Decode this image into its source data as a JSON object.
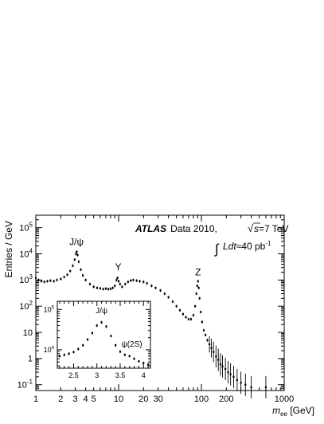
{
  "chart_data": {
    "type": "scatter",
    "main": {
      "xlabel": {
        "prefix": "m",
        "sub": "ee",
        "unit": " [GeV]"
      },
      "ylabel": "Entries / GeV",
      "xscale": "log",
      "yscale": "log",
      "xlim": [
        1,
        1000
      ],
      "ylim": [
        0.06,
        300000
      ],
      "x_ticks": [
        {
          "v": 1,
          "label": "1"
        },
        {
          "v": 2,
          "label": "2"
        },
        {
          "v": 3,
          "label": "3"
        },
        {
          "v": 4,
          "label": "4"
        },
        {
          "v": 5,
          "label": "5"
        },
        {
          "v": 10,
          "label": "10"
        },
        {
          "v": 20,
          "label": "20"
        },
        {
          "v": 30,
          "label": "30"
        },
        {
          "v": 100,
          "label": "100"
        },
        {
          "v": 200,
          "label": "200"
        },
        {
          "v": 1000,
          "label": "1000"
        }
      ],
      "y_ticks": [
        {
          "v": 0.1,
          "base": "10",
          "exp": "-1"
        },
        {
          "v": 1,
          "label": "1"
        },
        {
          "v": 10,
          "label": "10"
        },
        {
          "v": 100,
          "base": "10",
          "exp": "2"
        },
        {
          "v": 1000,
          "base": "10",
          "exp": "3"
        },
        {
          "v": 10000,
          "base": "10",
          "exp": "4"
        },
        {
          "v": 100000,
          "base": "10",
          "exp": "5"
        }
      ],
      "annotations": {
        "atlas": "ATLAS",
        "data_prefix": "Data 2010, ",
        "sqrt_s": "s",
        "sqrt_s_value": "=7 TeV",
        "lumi_prefix": "Ldt",
        "lumi_value": "≈40 pb",
        "lumi_exp": "-1"
      },
      "peak_labels": [
        {
          "label": "J/ψ",
          "x": 3.1,
          "y": 22000
        },
        {
          "label": "Υ",
          "x": 9.9,
          "y": 2400
        },
        {
          "label": "Z",
          "x": 91,
          "y": 1500
        }
      ],
      "series": [
        {
          "x": 1.0,
          "y": 1200
        },
        {
          "x": 1.08,
          "y": 1000
        },
        {
          "x": 1.17,
          "y": 900
        },
        {
          "x": 1.27,
          "y": 850
        },
        {
          "x": 1.38,
          "y": 900
        },
        {
          "x": 1.5,
          "y": 950
        },
        {
          "x": 1.65,
          "y": 900
        },
        {
          "x": 1.8,
          "y": 1000
        },
        {
          "x": 2.0,
          "y": 1100
        },
        {
          "x": 2.2,
          "y": 1300
        },
        {
          "x": 2.4,
          "y": 1600
        },
        {
          "x": 2.6,
          "y": 2200
        },
        {
          "x": 2.8,
          "y": 3500
        },
        {
          "x": 2.95,
          "y": 6000
        },
        {
          "x": 3.05,
          "y": 10000
        },
        {
          "x": 3.12,
          "y": 12000
        },
        {
          "x": 3.2,
          "y": 9000
        },
        {
          "x": 3.3,
          "y": 5000
        },
        {
          "x": 3.5,
          "y": 2500
        },
        {
          "x": 3.7,
          "y": 1500
        },
        {
          "x": 4.0,
          "y": 1000
        },
        {
          "x": 4.5,
          "y": 700
        },
        {
          "x": 5.0,
          "y": 550
        },
        {
          "x": 5.5,
          "y": 500
        },
        {
          "x": 6.0,
          "y": 480
        },
        {
          "x": 6.5,
          "y": 450
        },
        {
          "x": 7.0,
          "y": 470
        },
        {
          "x": 7.5,
          "y": 450
        },
        {
          "x": 8.0,
          "y": 460
        },
        {
          "x": 8.5,
          "y": 500
        },
        {
          "x": 9.0,
          "y": 600
        },
        {
          "x": 9.4,
          "y": 1000
        },
        {
          "x": 9.7,
          "y": 1200
        },
        {
          "x": 10.0,
          "y": 900
        },
        {
          "x": 10.4,
          "y": 700
        },
        {
          "x": 11.0,
          "y": 550
        },
        {
          "x": 12.0,
          "y": 700
        },
        {
          "x": 13.0,
          "y": 850
        },
        {
          "x": 14.0,
          "y": 950
        },
        {
          "x": 15.0,
          "y": 1000
        },
        {
          "x": 16.5,
          "y": 950
        },
        {
          "x": 18.0,
          "y": 900
        },
        {
          "x": 20.0,
          "y": 850
        },
        {
          "x": 22.0,
          "y": 750
        },
        {
          "x": 25.0,
          "y": 600
        },
        {
          "x": 28.0,
          "y": 500
        },
        {
          "x": 32.0,
          "y": 400
        },
        {
          "x": 36.0,
          "y": 300
        },
        {
          "x": 40.0,
          "y": 220
        },
        {
          "x": 45.0,
          "y": 150
        },
        {
          "x": 50.0,
          "y": 100
        },
        {
          "x": 55.0,
          "y": 70
        },
        {
          "x": 60.0,
          "y": 50
        },
        {
          "x": 65.0,
          "y": 38
        },
        {
          "x": 70.0,
          "y": 32
        },
        {
          "x": 75.0,
          "y": 32
        },
        {
          "x": 80.0,
          "y": 45
        },
        {
          "x": 84.0,
          "y": 100
        },
        {
          "x": 87.0,
          "y": 300
        },
        {
          "x": 89.0,
          "y": 600
        },
        {
          "x": 91.0,
          "y": 900
        },
        {
          "x": 93.0,
          "y": 500
        },
        {
          "x": 95.0,
          "y": 200
        },
        {
          "x": 98.0,
          "y": 60
        },
        {
          "x": 102.0,
          "y": 25
        },
        {
          "x": 107.0,
          "y": 12
        },
        {
          "x": 112.0,
          "y": 8
        },
        {
          "x": 118.0,
          "y": 5
        },
        {
          "x": 125.0,
          "y": 3.5
        },
        {
          "x": 132.0,
          "y": 2.5
        },
        {
          "x": 140.0,
          "y": 1.8
        },
        {
          "x": 150.0,
          "y": 1.2
        },
        {
          "x": 160.0,
          "y": 0.9
        },
        {
          "x": 170.0,
          "y": 0.6
        },
        {
          "x": 180.0,
          "y": 0.5
        },
        {
          "x": 195.0,
          "y": 0.4
        },
        {
          "x": 210.0,
          "y": 0.3
        },
        {
          "x": 225.0,
          "y": 0.25
        },
        {
          "x": 245.0,
          "y": 0.2
        },
        {
          "x": 270.0,
          "y": 0.15
        },
        {
          "x": 300.0,
          "y": 0.12
        },
        {
          "x": 340.0,
          "y": 0.1
        },
        {
          "x": 400.0,
          "y": 0.08
        },
        {
          "x": 600.0,
          "y": 0.08
        }
      ]
    },
    "inset": {
      "xscale": "linear",
      "yscale": "log",
      "xlim": [
        2.15,
        4.15
      ],
      "ylim": [
        3500,
        160000
      ],
      "x_ticks": [
        {
          "v": 2.5,
          "label": "2.5"
        },
        {
          "v": 3,
          "label": "3"
        },
        {
          "v": 3.5,
          "label": "3.5"
        },
        {
          "v": 4,
          "label": "4"
        }
      ],
      "y_ticks": [
        {
          "v": 10000,
          "base": "10",
          "exp": "4"
        },
        {
          "v": 100000,
          "base": "10",
          "exp": "5"
        }
      ],
      "peak_labels": [
        {
          "label": "J/ψ",
          "x": 3.1,
          "y": 80000
        },
        {
          "label": "ψ(2S)",
          "x": 3.75,
          "y": 12000
        }
      ],
      "series": [
        {
          "x": 2.2,
          "y": 7000
        },
        {
          "x": 2.3,
          "y": 7500
        },
        {
          "x": 2.4,
          "y": 8000
        },
        {
          "x": 2.5,
          "y": 8800
        },
        {
          "x": 2.6,
          "y": 10500
        },
        {
          "x": 2.7,
          "y": 13000
        },
        {
          "x": 2.8,
          "y": 18000
        },
        {
          "x": 2.9,
          "y": 26000
        },
        {
          "x": 3.0,
          "y": 40000
        },
        {
          "x": 3.1,
          "y": 48000
        },
        {
          "x": 3.2,
          "y": 38000
        },
        {
          "x": 3.3,
          "y": 22000
        },
        {
          "x": 3.4,
          "y": 13000
        },
        {
          "x": 3.5,
          "y": 9000
        },
        {
          "x": 3.6,
          "y": 7500
        },
        {
          "x": 3.7,
          "y": 7000
        },
        {
          "x": 3.8,
          "y": 6000
        },
        {
          "x": 3.9,
          "y": 5200
        },
        {
          "x": 4.0,
          "y": 4700
        },
        {
          "x": 4.1,
          "y": 4300
        }
      ]
    }
  }
}
